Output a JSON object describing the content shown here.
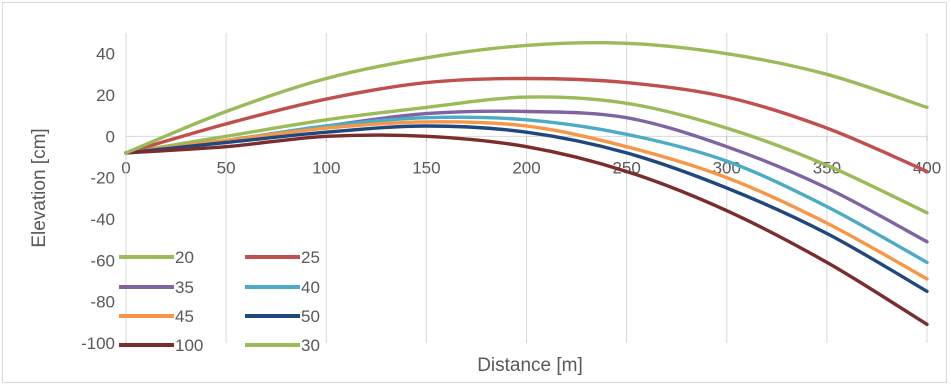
{
  "chart_data": {
    "type": "line",
    "title": "",
    "xlabel": "Distance [m]",
    "ylabel": "Elevation [cm]",
    "xlim": [
      0,
      400
    ],
    "ylim": [
      -100,
      50
    ],
    "x_ticks": [
      0,
      50,
      100,
      150,
      200,
      250,
      300,
      350,
      400
    ],
    "y_ticks": [
      -100,
      -80,
      -60,
      -40,
      -20,
      0,
      20,
      40
    ],
    "grid": "vertical",
    "legend_position": "bottom-left",
    "x": [
      0,
      50,
      100,
      150,
      200,
      250,
      300,
      350,
      400
    ],
    "series": [
      {
        "name": "20",
        "color": "#9bbb59",
        "values": [
          -8,
          0,
          8,
          14,
          19,
          16,
          4,
          -14,
          -37
        ]
      },
      {
        "name": "25",
        "color": "#c0504d",
        "values": [
          -8,
          6,
          18,
          26,
          28,
          26,
          19,
          4,
          -17
        ]
      },
      {
        "name": "35",
        "color": "#8064a2",
        "values": [
          -8,
          -2,
          5,
          11,
          12,
          9,
          -5,
          -25,
          -51
        ]
      },
      {
        "name": "40",
        "color": "#4bacc6",
        "values": [
          -8,
          -2,
          5,
          9,
          8,
          1,
          -12,
          -34,
          -61
        ]
      },
      {
        "name": "45",
        "color": "#f79646",
        "values": [
          -8,
          -2,
          4,
          7,
          5,
          -5,
          -20,
          -42,
          -69
        ]
      },
      {
        "name": "50",
        "color": "#1f497d",
        "values": [
          -8,
          -3,
          2,
          5,
          2,
          -8,
          -25,
          -47,
          -75
        ]
      },
      {
        "name": "100",
        "color": "#7b2c2c",
        "values": [
          -8,
          -5,
          0,
          0,
          -5,
          -17,
          -36,
          -61,
          -91
        ]
      },
      {
        "name": "30",
        "color": "#9bbb59",
        "values": [
          -8,
          12,
          28,
          38,
          44,
          45,
          40,
          30,
          14
        ]
      }
    ]
  }
}
